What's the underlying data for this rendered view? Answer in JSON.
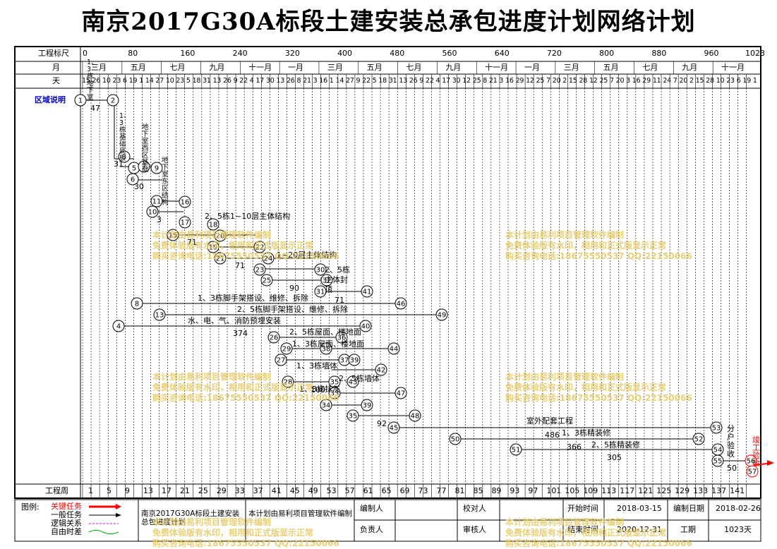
{
  "title": "南京2017G30A标段土建安装总承包进度计划网络计划",
  "header_rows": {
    "scale_label": "工程标尺",
    "month_label": "月",
    "day_label": "天",
    "week_label": "工程周",
    "scale_ticks": [
      "0",
      "80",
      "160",
      "240",
      "320",
      "400",
      "480",
      "560",
      "640",
      "720",
      "800",
      "880",
      "960",
      "1023"
    ],
    "months": [
      "三月",
      "五月",
      "七月",
      "九月",
      "十一月",
      "一月",
      "三月",
      "五月",
      "七月",
      "九月",
      "十一月",
      "一月",
      "三月",
      "五月",
      "七月",
      "九月",
      "十一月"
    ],
    "weeks": [
      "1",
      "5",
      "9",
      "13",
      "17",
      "21",
      "25",
      "29",
      "33",
      "37",
      "41",
      "45",
      "49",
      "53",
      "57",
      "61",
      "65",
      "69",
      "73",
      "77",
      "81",
      "85",
      "89",
      "93",
      "97",
      "101",
      "105",
      "109",
      "113",
      "117",
      "121",
      "125",
      "129",
      "133",
      "137",
      "141"
    ],
    "days_text": "15 26 10 23 6 19 1 14 27 10 23 5 18 31 13 26 9 22 4 17 30 13 26 8 21 3 16 1 14 27 9 22 5 18 31 13 26 9 22 4 17 30 12 25 8 21 3 16 29 12 25 7 20 2 15 28 12 25 7 20 3 16 29 11 24 7 20 2 15 28 10 23 6 19 1 14 27 10"
  },
  "region_label": "区域说明",
  "tasks": [
    {
      "text": "1、3栋地下室",
      "id": "t1"
    },
    {
      "text": "1、3栋基础底板",
      "id": "t2"
    },
    {
      "text": "地下室西区基础",
      "id": "t3"
    },
    {
      "text": "地下室东区结构",
      "id": "t4"
    },
    {
      "text": "2、5栋1~10层主体结构",
      "id": "t5"
    },
    {
      "text": "1~20层主体结构",
      "id": "t6"
    },
    {
      "text": "2、5栋主体封顶",
      "id": "t7"
    },
    {
      "text": "1、3栋脚手架搭设、维修、拆除",
      "id": "t8"
    },
    {
      "text": "2、5栋脚手架搭设、维修、拆除",
      "id": "t9"
    },
    {
      "text": "水、电、气、消防预埋安装",
      "id": "t10"
    },
    {
      "text": "2、5栋屋面、楼地面",
      "id": "t11"
    },
    {
      "text": "1、3栋屋面、楼地面",
      "id": "t12"
    },
    {
      "text": "1、3栋墙体",
      "id": "t13"
    },
    {
      "text": "2、5栋墙体",
      "id": "t14"
    },
    {
      "text": "1、3栋抹灰",
      "id": "t15"
    },
    {
      "text": "室外配套工程",
      "id": "t16"
    },
    {
      "text": "1、3栋精装修",
      "id": "t17"
    },
    {
      "text": "2、5栋精装修",
      "id": "t18"
    },
    {
      "text": "分户验收",
      "id": "t19"
    },
    {
      "text": "竣工验收",
      "id": "t20"
    }
  ],
  "durations": [
    "47",
    "31",
    "30",
    "71",
    "71",
    "90",
    "71",
    "374",
    "100",
    "92",
    "486",
    "366",
    "305",
    "50",
    "3"
  ],
  "legend": {
    "title": "图例:",
    "items": [
      "关键任务",
      "一般任务",
      "逻辑关系",
      "自由时差"
    ]
  },
  "footer": {
    "project_name": "南京2017G30A标段土建安装总包进度计划",
    "software_note": "本计划由易利项目管理软件编制",
    "editor_label": "编制人",
    "editor_value": "",
    "checker_label": "校对人",
    "checker_value": "",
    "reviewer_label": "负责人",
    "reviewer_value": "",
    "auditor_label": "审核人",
    "auditor_value": "",
    "start_label": "开始时间",
    "start_value": "2018-03-15",
    "end_label": "结束时间",
    "end_value": "2020-12-31",
    "date_label": "编制日期",
    "date_value": "2018-02-26",
    "duration_label": "工期",
    "duration_value": "1023天"
  },
  "watermark": {
    "line1": "本计划由易利项目管理软件编制",
    "line2": "免费体验版有水印，相用和正式版显示正常",
    "line3": "购买咨询电话:18675550537 QQ:22150066"
  },
  "colors": {
    "critical": "#ff0000",
    "normal": "#000000",
    "logic": "#ff00ff",
    "float": "#00aa00",
    "watermark": "#e6c760",
    "region": "#0000cc"
  }
}
